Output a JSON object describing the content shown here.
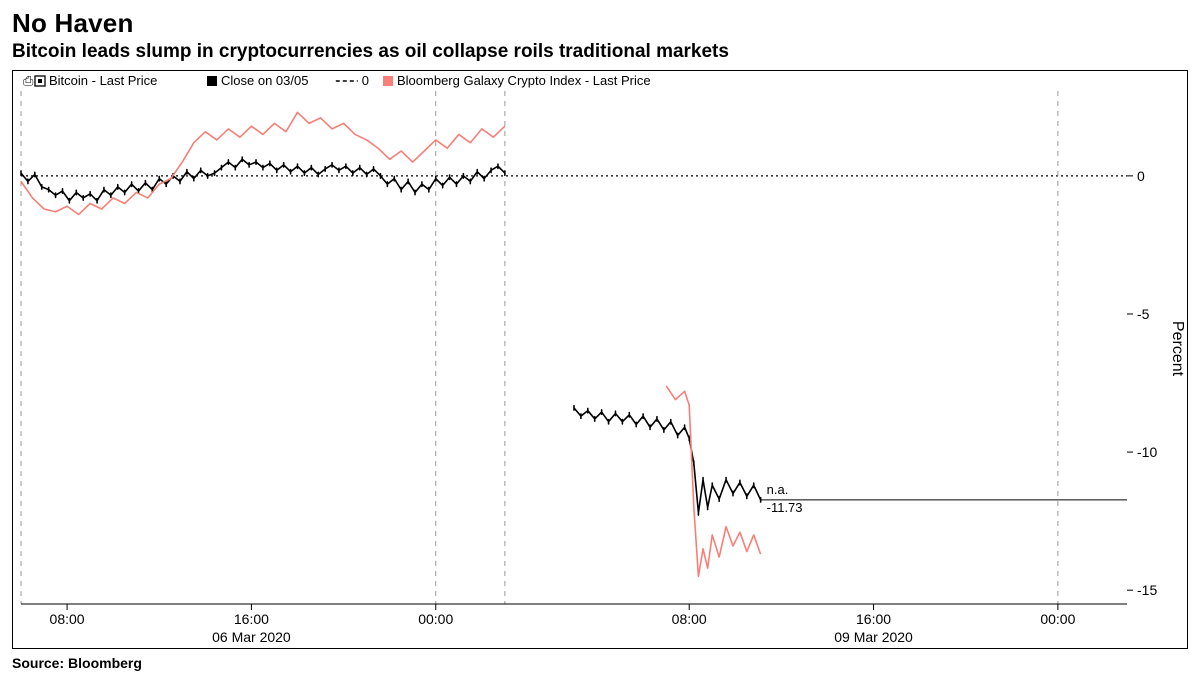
{
  "title": "No Haven",
  "subtitle": "Bitcoin leads slump in cryptocurrencies as oil collapse roils traditional markets",
  "source": "Source: Bloomberg",
  "chart": {
    "type": "line",
    "background_color": "#ffffff",
    "border_color": "#000000",
    "ylabel": "Percent",
    "ylim": [
      -15.5,
      3
    ],
    "yticks": [
      0,
      -5,
      -10,
      -15
    ],
    "xlim": [
      0,
      48
    ],
    "x_gap_h": 3,
    "xticks_major": [
      {
        "t": 2,
        "label": "08:00"
      },
      {
        "t": 10,
        "label": "16:00"
      },
      {
        "t": 18,
        "label": "00:00"
      },
      {
        "t": 29,
        "label": "08:00"
      },
      {
        "t": 37,
        "label": "16:00"
      },
      {
        "t": 45,
        "label": "00:00"
      }
    ],
    "x_date_labels": [
      {
        "t": 10,
        "label": "06 Mar 2020"
      },
      {
        "t": 37,
        "label": "09 Mar 2020"
      }
    ],
    "day_starts_vlines": [
      0,
      18,
      21,
      45
    ],
    "zero_line_style": "dotted",
    "zero_line_color": "#000000",
    "grid_vline_color": "#999999",
    "legend": {
      "items": [
        {
          "key": "bitcoin",
          "label": "Bitcoin - Last Price",
          "swatch": "bw-square"
        },
        {
          "key": "close",
          "label": "Close on 03/05",
          "swatch": "solid-black"
        },
        {
          "key": "zero",
          "label": "0",
          "swatch": "dashed"
        },
        {
          "key": "bgci",
          "label": "Bloomberg Galaxy Crypto Index - Last Price",
          "swatch": "solid-red"
        }
      ]
    },
    "series": [
      {
        "id": "bitcoin_seg1",
        "color": "#000000",
        "width": 1.6,
        "style": "jagged",
        "points": [
          [
            0.0,
            0.1
          ],
          [
            0.3,
            -0.2
          ],
          [
            0.6,
            0.05
          ],
          [
            0.9,
            -0.4
          ],
          [
            1.2,
            -0.5
          ],
          [
            1.5,
            -0.7
          ],
          [
            1.8,
            -0.55
          ],
          [
            2.1,
            -0.9
          ],
          [
            2.4,
            -0.6
          ],
          [
            2.7,
            -0.8
          ],
          [
            3.0,
            -0.65
          ],
          [
            3.3,
            -0.9
          ],
          [
            3.6,
            -0.5
          ],
          [
            3.9,
            -0.7
          ],
          [
            4.2,
            -0.4
          ],
          [
            4.5,
            -0.6
          ],
          [
            4.8,
            -0.3
          ],
          [
            5.1,
            -0.55
          ],
          [
            5.4,
            -0.25
          ],
          [
            5.7,
            -0.5
          ],
          [
            6.0,
            -0.1
          ],
          [
            6.3,
            -0.3
          ],
          [
            6.6,
            0.0
          ],
          [
            6.9,
            -0.2
          ],
          [
            7.2,
            0.15
          ],
          [
            7.5,
            -0.1
          ],
          [
            7.8,
            0.2
          ],
          [
            8.1,
            0.0
          ],
          [
            8.4,
            0.1
          ],
          [
            8.7,
            0.3
          ],
          [
            9.0,
            0.5
          ],
          [
            9.3,
            0.3
          ],
          [
            9.6,
            0.6
          ],
          [
            9.9,
            0.4
          ],
          [
            10.2,
            0.5
          ],
          [
            10.5,
            0.3
          ],
          [
            10.8,
            0.45
          ],
          [
            11.1,
            0.2
          ],
          [
            11.4,
            0.4
          ],
          [
            11.7,
            0.15
          ],
          [
            12.0,
            0.35
          ],
          [
            12.3,
            0.1
          ],
          [
            12.6,
            0.3
          ],
          [
            12.9,
            0.05
          ],
          [
            13.2,
            0.25
          ],
          [
            13.5,
            0.4
          ],
          [
            13.8,
            0.2
          ],
          [
            14.1,
            0.35
          ],
          [
            14.4,
            0.1
          ],
          [
            14.7,
            0.3
          ],
          [
            15.0,
            0.05
          ],
          [
            15.3,
            0.25
          ],
          [
            15.6,
            0.0
          ],
          [
            15.9,
            -0.3
          ],
          [
            16.2,
            -0.1
          ],
          [
            16.5,
            -0.5
          ],
          [
            16.8,
            -0.2
          ],
          [
            17.1,
            -0.6
          ],
          [
            17.4,
            -0.3
          ],
          [
            17.7,
            -0.5
          ],
          [
            18.0,
            -0.1
          ],
          [
            18.3,
            -0.35
          ],
          [
            18.6,
            -0.05
          ],
          [
            18.9,
            -0.3
          ],
          [
            19.2,
            0.0
          ],
          [
            19.5,
            -0.2
          ],
          [
            19.8,
            0.15
          ],
          [
            20.1,
            -0.1
          ],
          [
            20.4,
            0.2
          ],
          [
            20.7,
            0.35
          ],
          [
            21.0,
            0.1
          ]
        ]
      },
      {
        "id": "bitcoin_seg2",
        "color": "#000000",
        "width": 1.6,
        "style": "jagged",
        "points": [
          [
            24.0,
            -8.4
          ],
          [
            24.3,
            -8.7
          ],
          [
            24.6,
            -8.5
          ],
          [
            24.9,
            -8.8
          ],
          [
            25.2,
            -8.55
          ],
          [
            25.5,
            -8.9
          ],
          [
            25.8,
            -8.6
          ],
          [
            26.1,
            -8.9
          ],
          [
            26.4,
            -8.65
          ],
          [
            26.7,
            -9.0
          ],
          [
            27.0,
            -8.7
          ],
          [
            27.3,
            -9.1
          ],
          [
            27.6,
            -8.8
          ],
          [
            27.9,
            -9.2
          ],
          [
            28.2,
            -8.9
          ],
          [
            28.5,
            -9.4
          ],
          [
            28.8,
            -9.1
          ],
          [
            29.0,
            -9.5
          ],
          [
            29.2,
            -10.4
          ],
          [
            29.4,
            -12.2
          ],
          [
            29.6,
            -11.0
          ],
          [
            29.8,
            -12.0
          ],
          [
            30.0,
            -11.2
          ],
          [
            30.3,
            -11.7
          ],
          [
            30.6,
            -11.0
          ],
          [
            30.9,
            -11.5
          ],
          [
            31.2,
            -11.1
          ],
          [
            31.5,
            -11.6
          ],
          [
            31.8,
            -11.2
          ],
          [
            32.1,
            -11.73
          ]
        ]
      },
      {
        "id": "bgci_seg1",
        "color": "#f77f78",
        "width": 1.6,
        "style": "line",
        "points": [
          [
            0.0,
            -0.2
          ],
          [
            0.5,
            -0.8
          ],
          [
            1.0,
            -1.2
          ],
          [
            1.5,
            -1.3
          ],
          [
            2.0,
            -1.1
          ],
          [
            2.5,
            -1.4
          ],
          [
            3.0,
            -1.0
          ],
          [
            3.5,
            -1.2
          ],
          [
            4.0,
            -0.8
          ],
          [
            4.5,
            -1.0
          ],
          [
            5.0,
            -0.6
          ],
          [
            5.5,
            -0.8
          ],
          [
            6.0,
            -0.3
          ],
          [
            6.5,
            -0.1
          ],
          [
            7.0,
            0.5
          ],
          [
            7.5,
            1.2
          ],
          [
            8.0,
            1.6
          ],
          [
            8.5,
            1.3
          ],
          [
            9.0,
            1.7
          ],
          [
            9.5,
            1.4
          ],
          [
            10.0,
            1.8
          ],
          [
            10.5,
            1.5
          ],
          [
            11.0,
            1.9
          ],
          [
            11.5,
            1.6
          ],
          [
            12.0,
            2.3
          ],
          [
            12.5,
            1.9
          ],
          [
            13.0,
            2.1
          ],
          [
            13.5,
            1.7
          ],
          [
            14.0,
            1.9
          ],
          [
            14.5,
            1.5
          ],
          [
            15.0,
            1.3
          ],
          [
            15.5,
            1.0
          ],
          [
            16.0,
            0.6
          ],
          [
            16.5,
            0.9
          ],
          [
            17.0,
            0.5
          ],
          [
            17.5,
            0.9
          ],
          [
            18.0,
            1.3
          ],
          [
            18.5,
            1.0
          ],
          [
            19.0,
            1.5
          ],
          [
            19.5,
            1.2
          ],
          [
            20.0,
            1.7
          ],
          [
            20.5,
            1.4
          ],
          [
            21.0,
            1.8
          ]
        ]
      },
      {
        "id": "bgci_seg2",
        "color": "#f77f78",
        "width": 1.6,
        "style": "line",
        "points": [
          [
            28.0,
            -7.6
          ],
          [
            28.4,
            -8.1
          ],
          [
            28.8,
            -7.8
          ],
          [
            29.0,
            -8.3
          ],
          [
            29.2,
            -12.0
          ],
          [
            29.4,
            -14.5
          ],
          [
            29.6,
            -13.5
          ],
          [
            29.8,
            -14.2
          ],
          [
            30.0,
            -13.0
          ],
          [
            30.3,
            -13.8
          ],
          [
            30.6,
            -12.7
          ],
          [
            30.9,
            -13.4
          ],
          [
            31.2,
            -12.9
          ],
          [
            31.5,
            -13.6
          ],
          [
            31.8,
            -13.0
          ],
          [
            32.1,
            -13.7
          ]
        ]
      }
    ],
    "annotation": {
      "top_label": "n.a.",
      "value_label": "-11.73",
      "t": 32.1,
      "y": -11.73,
      "line_to_right": true
    },
    "title_fontsize": 26,
    "subtitle_fontsize": 19,
    "axis_fontsize": 14,
    "legend_fontsize": 13
  }
}
